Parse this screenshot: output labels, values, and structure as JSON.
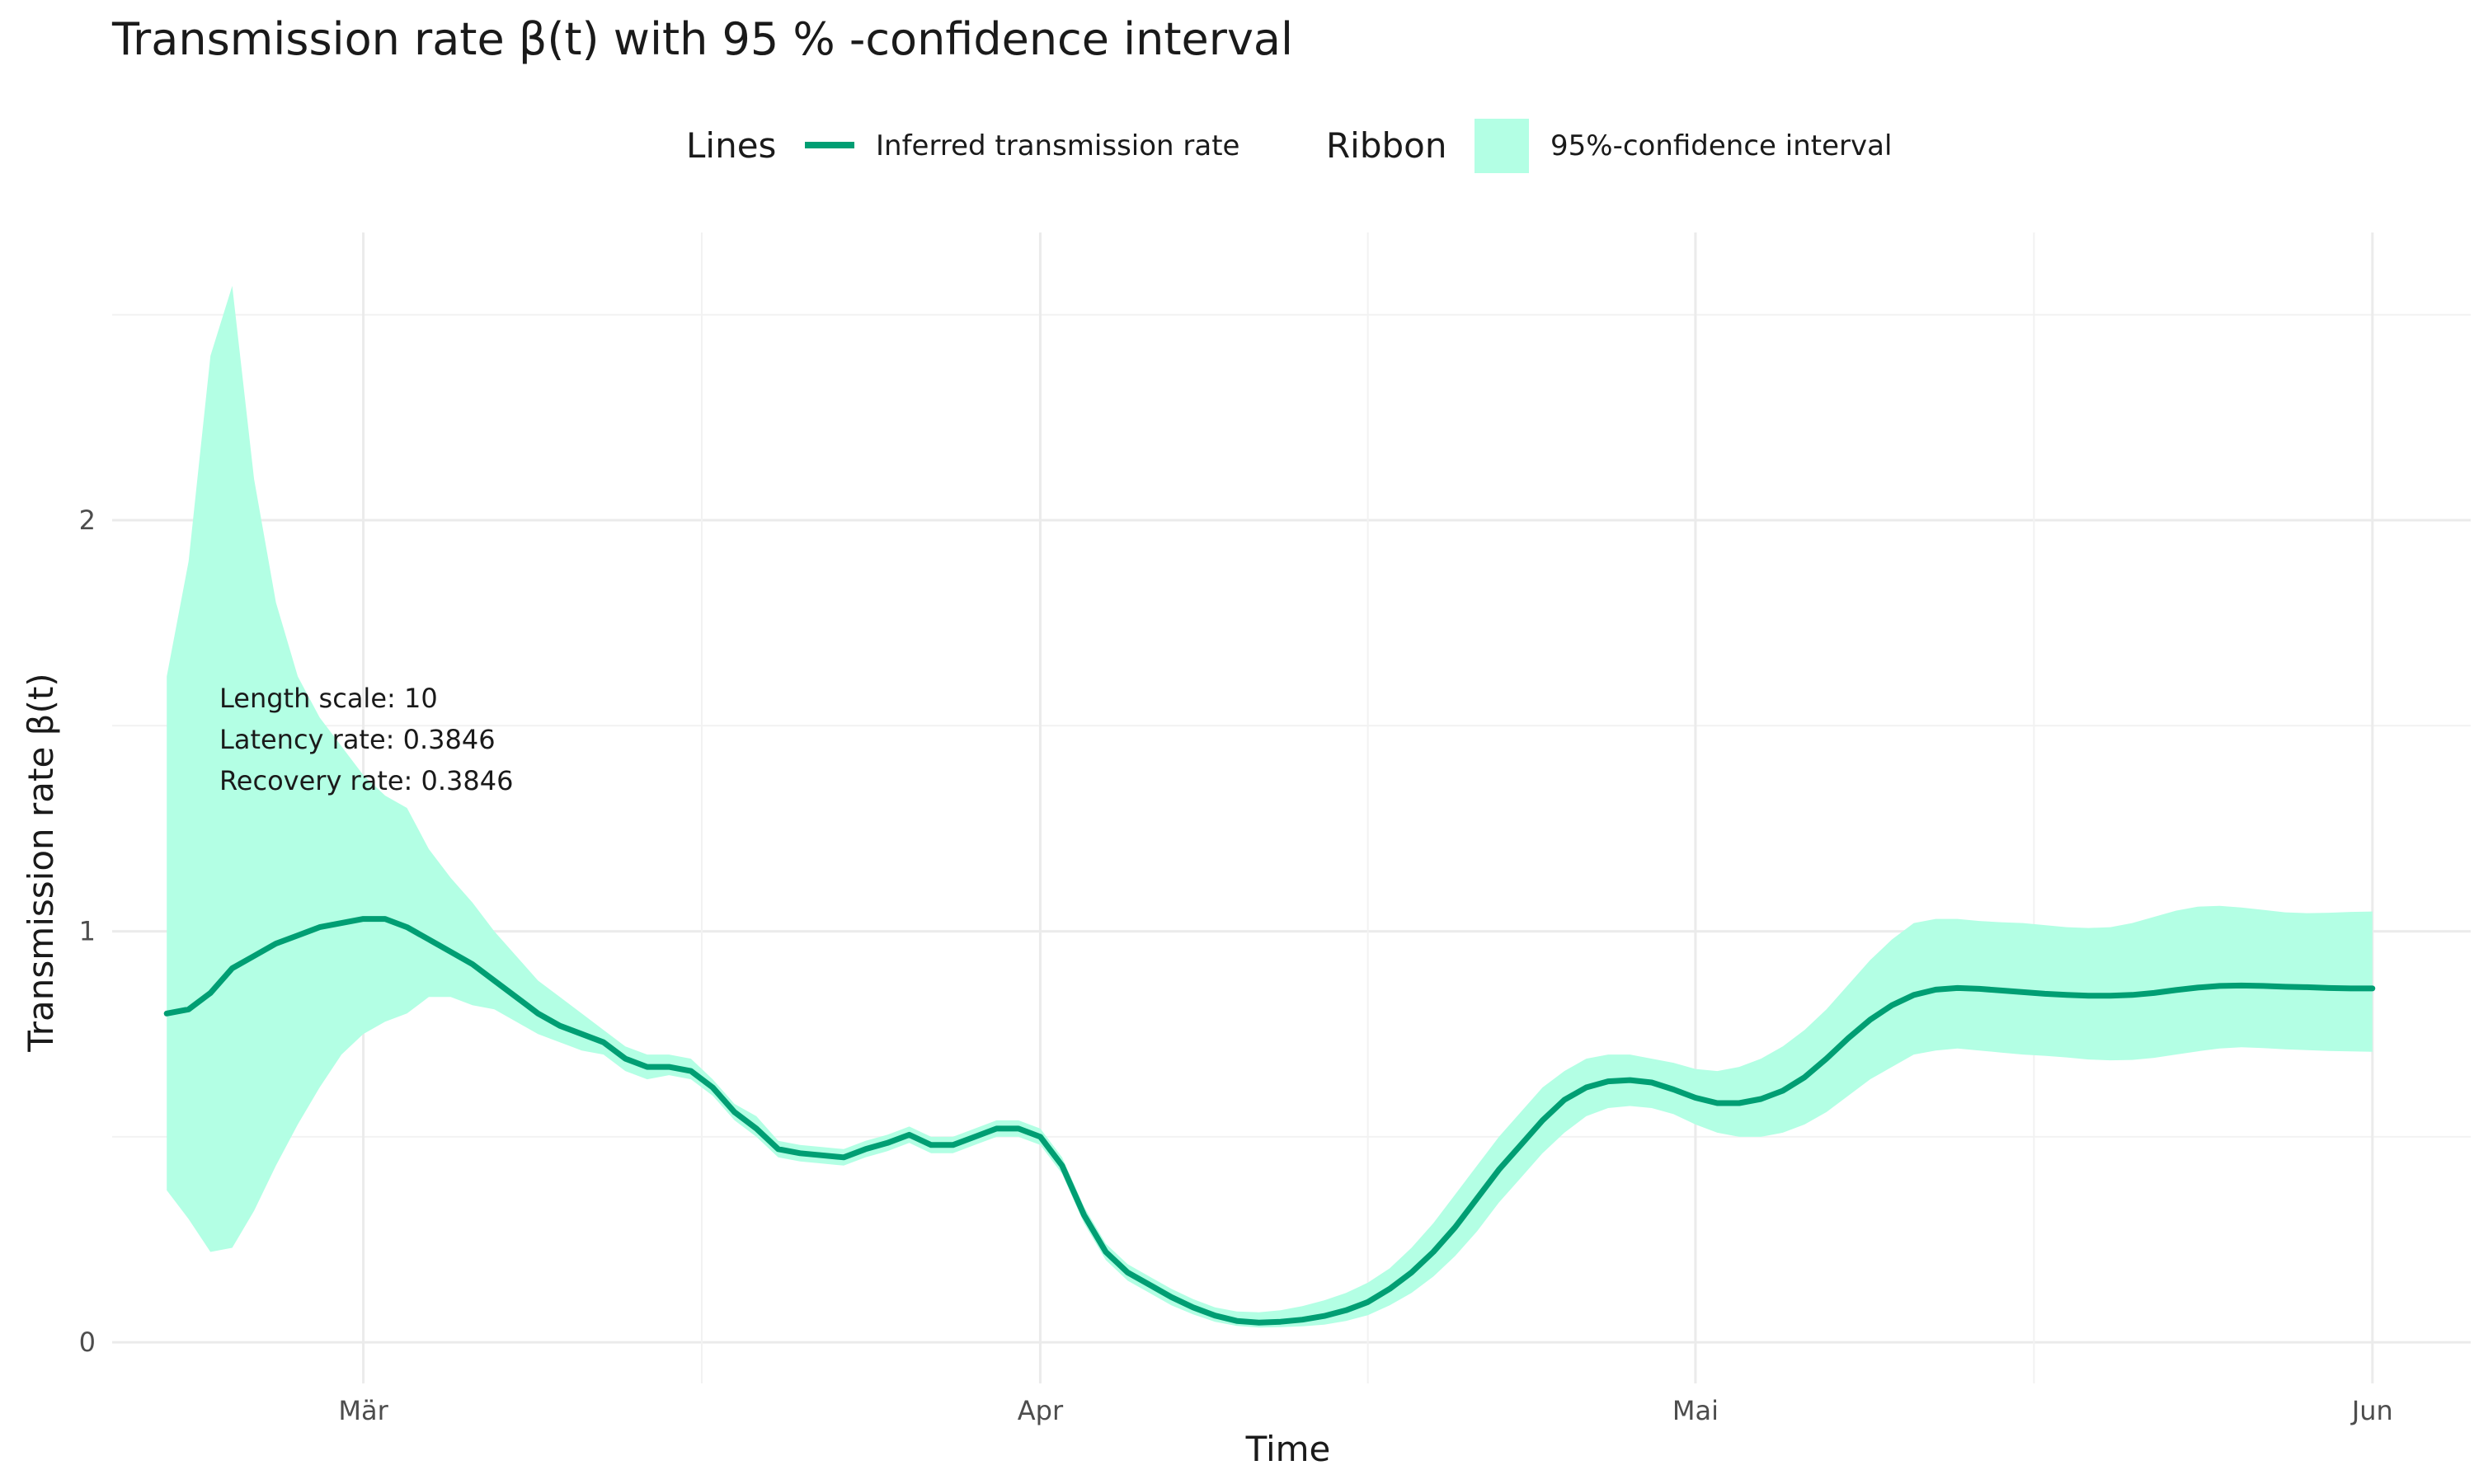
{
  "chart_data": {
    "type": "line",
    "title": "Transmission rate β(t) with 95 % -confidence interval",
    "xlabel": "Time",
    "ylabel": "Transmission rate β(t)",
    "legend": {
      "placement": "top",
      "lines_title": "Lines",
      "lines_label": "Inferred transmission rate",
      "ribbon_title": "Ribbon",
      "ribbon_label": "95%-confidence interval"
    },
    "colors": {
      "line": "#009e73",
      "ribbon": "#b3ffe4"
    },
    "grid": true,
    "x_start": "2020-02-21",
    "x_ticks": [
      {
        "date": "2020-03-01",
        "label": "Mär"
      },
      {
        "date": "2020-04-01",
        "label": "Apr"
      },
      {
        "date": "2020-05-01",
        "label": "Mai"
      },
      {
        "date": "2020-06-01",
        "label": "Jun"
      }
    ],
    "y_ticks": [
      0,
      1,
      2
    ],
    "ylim": [
      -0.1,
      2.7
    ],
    "annotations": [
      "Length scale: 10",
      "Latency rate: 0.3846",
      "Recovery rate: 0.3846"
    ],
    "series": [
      {
        "name": "Inferred transmission rate",
        "points": [
          [
            "2020-02-21",
            0.8
          ],
          [
            "2020-02-22",
            0.81
          ],
          [
            "2020-02-23",
            0.85
          ],
          [
            "2020-02-24",
            0.91
          ],
          [
            "2020-02-25",
            0.94
          ],
          [
            "2020-02-26",
            0.97
          ],
          [
            "2020-02-27",
            0.99
          ],
          [
            "2020-02-28",
            1.01
          ],
          [
            "2020-02-29",
            1.02
          ],
          [
            "2020-03-01",
            1.03
          ],
          [
            "2020-03-02",
            1.03
          ],
          [
            "2020-03-03",
            1.01
          ],
          [
            "2020-03-04",
            0.98
          ],
          [
            "2020-03-05",
            0.95
          ],
          [
            "2020-03-06",
            0.92
          ],
          [
            "2020-03-07",
            0.88
          ],
          [
            "2020-03-08",
            0.84
          ],
          [
            "2020-03-09",
            0.8
          ],
          [
            "2020-03-10",
            0.77
          ],
          [
            "2020-03-11",
            0.75
          ],
          [
            "2020-03-12",
            0.73
          ],
          [
            "2020-03-13",
            0.69
          ],
          [
            "2020-03-14",
            0.67
          ],
          [
            "2020-03-15",
            0.67
          ],
          [
            "2020-03-16",
            0.66
          ],
          [
            "2020-03-17",
            0.62
          ],
          [
            "2020-03-18",
            0.56
          ],
          [
            "2020-03-19",
            0.52
          ],
          [
            "2020-03-20",
            0.47
          ],
          [
            "2020-03-21",
            0.46
          ],
          [
            "2020-03-22",
            0.455
          ],
          [
            "2020-03-23",
            0.45
          ],
          [
            "2020-03-24",
            0.47
          ],
          [
            "2020-03-25",
            0.485
          ],
          [
            "2020-03-26",
            0.505
          ],
          [
            "2020-03-27",
            0.48
          ],
          [
            "2020-03-28",
            0.48
          ],
          [
            "2020-03-29",
            0.5
          ],
          [
            "2020-03-30",
            0.52
          ],
          [
            "2020-03-31",
            0.52
          ],
          [
            "2020-04-01",
            0.5
          ],
          [
            "2020-04-02",
            0.43
          ],
          [
            "2020-04-03",
            0.31
          ],
          [
            "2020-04-04",
            0.22
          ],
          [
            "2020-04-05",
            0.17
          ],
          [
            "2020-04-06",
            0.14
          ],
          [
            "2020-04-07",
            0.11
          ],
          [
            "2020-04-08",
            0.085
          ],
          [
            "2020-04-09",
            0.065
          ],
          [
            "2020-04-10",
            0.052
          ],
          [
            "2020-04-11",
            0.048
          ],
          [
            "2020-04-12",
            0.05
          ],
          [
            "2020-04-13",
            0.055
          ],
          [
            "2020-04-14",
            0.064
          ],
          [
            "2020-04-15",
            0.078
          ],
          [
            "2020-04-16",
            0.098
          ],
          [
            "2020-04-17",
            0.13
          ],
          [
            "2020-04-18",
            0.17
          ],
          [
            "2020-04-19",
            0.22
          ],
          [
            "2020-04-20",
            0.28
          ],
          [
            "2020-04-21",
            0.35
          ],
          [
            "2020-04-22",
            0.42
          ],
          [
            "2020-04-23",
            0.48
          ],
          [
            "2020-04-24",
            0.54
          ],
          [
            "2020-04-25",
            0.59
          ],
          [
            "2020-04-26",
            0.62
          ],
          [
            "2020-04-27",
            0.635
          ],
          [
            "2020-04-28",
            0.638
          ],
          [
            "2020-04-29",
            0.632
          ],
          [
            "2020-04-30",
            0.615
          ],
          [
            "2020-05-01",
            0.595
          ],
          [
            "2020-05-02",
            0.582
          ],
          [
            "2020-05-03",
            0.582
          ],
          [
            "2020-05-04",
            0.592
          ],
          [
            "2020-05-05",
            0.612
          ],
          [
            "2020-05-06",
            0.645
          ],
          [
            "2020-05-07",
            0.69
          ],
          [
            "2020-05-08",
            0.74
          ],
          [
            "2020-05-09",
            0.785
          ],
          [
            "2020-05-10",
            0.82
          ],
          [
            "2020-05-11",
            0.845
          ],
          [
            "2020-05-12",
            0.858
          ],
          [
            "2020-05-13",
            0.862
          ],
          [
            "2020-05-14",
            0.86
          ],
          [
            "2020-05-15",
            0.856
          ],
          [
            "2020-05-16",
            0.852
          ],
          [
            "2020-05-17",
            0.848
          ],
          [
            "2020-05-18",
            0.845
          ],
          [
            "2020-05-19",
            0.843
          ],
          [
            "2020-05-20",
            0.843
          ],
          [
            "2020-05-21",
            0.845
          ],
          [
            "2020-05-22",
            0.85
          ],
          [
            "2020-05-23",
            0.857
          ],
          [
            "2020-05-24",
            0.863
          ],
          [
            "2020-05-25",
            0.867
          ],
          [
            "2020-05-26",
            0.868
          ],
          [
            "2020-05-27",
            0.867
          ],
          [
            "2020-05-28",
            0.865
          ],
          [
            "2020-05-29",
            0.864
          ],
          [
            "2020-05-30",
            0.862
          ],
          [
            "2020-05-31",
            0.861
          ],
          [
            "2020-06-01",
            0.861
          ]
        ]
      },
      {
        "name": "95%-confidence interval",
        "points_lower_upper": [
          [
            "2020-02-21",
            0.37,
            1.62
          ],
          [
            "2020-02-22",
            0.3,
            1.9
          ],
          [
            "2020-02-23",
            0.22,
            2.4
          ],
          [
            "2020-02-24",
            0.23,
            2.57
          ],
          [
            "2020-02-25",
            0.32,
            2.1
          ],
          [
            "2020-02-26",
            0.43,
            1.8
          ],
          [
            "2020-02-27",
            0.53,
            1.62
          ],
          [
            "2020-02-28",
            0.62,
            1.52
          ],
          [
            "2020-02-29",
            0.7,
            1.45
          ],
          [
            "2020-03-01",
            0.75,
            1.38
          ],
          [
            "2020-03-02",
            0.78,
            1.33
          ],
          [
            "2020-03-03",
            0.8,
            1.3
          ],
          [
            "2020-03-04",
            0.84,
            1.2
          ],
          [
            "2020-03-05",
            0.84,
            1.13
          ],
          [
            "2020-03-06",
            0.82,
            1.07
          ],
          [
            "2020-03-07",
            0.81,
            1.0
          ],
          [
            "2020-03-08",
            0.78,
            0.94
          ],
          [
            "2020-03-09",
            0.75,
            0.88
          ],
          [
            "2020-03-10",
            0.73,
            0.84
          ],
          [
            "2020-03-11",
            0.71,
            0.8
          ],
          [
            "2020-03-12",
            0.7,
            0.76
          ],
          [
            "2020-03-13",
            0.66,
            0.72
          ],
          [
            "2020-03-14",
            0.64,
            0.7
          ],
          [
            "2020-03-15",
            0.65,
            0.7
          ],
          [
            "2020-03-16",
            0.64,
            0.69
          ],
          [
            "2020-03-17",
            0.6,
            0.64
          ],
          [
            "2020-03-18",
            0.54,
            0.58
          ],
          [
            "2020-03-19",
            0.5,
            0.55
          ],
          [
            "2020-03-20",
            0.45,
            0.49
          ],
          [
            "2020-03-21",
            0.44,
            0.48
          ],
          [
            "2020-03-22",
            0.435,
            0.475
          ],
          [
            "2020-03-23",
            0.43,
            0.47
          ],
          [
            "2020-03-24",
            0.45,
            0.49
          ],
          [
            "2020-03-25",
            0.465,
            0.505
          ],
          [
            "2020-03-26",
            0.485,
            0.525
          ],
          [
            "2020-03-27",
            0.46,
            0.5
          ],
          [
            "2020-03-28",
            0.46,
            0.5
          ],
          [
            "2020-03-29",
            0.48,
            0.52
          ],
          [
            "2020-03-30",
            0.5,
            0.54
          ],
          [
            "2020-03-31",
            0.5,
            0.54
          ],
          [
            "2020-04-01",
            0.48,
            0.52
          ],
          [
            "2020-04-02",
            0.41,
            0.45
          ],
          [
            "2020-04-03",
            0.29,
            0.33
          ],
          [
            "2020-04-04",
            0.2,
            0.24
          ],
          [
            "2020-04-05",
            0.15,
            0.19
          ],
          [
            "2020-04-06",
            0.12,
            0.16
          ],
          [
            "2020-04-07",
            0.09,
            0.13
          ],
          [
            "2020-04-08",
            0.068,
            0.105
          ],
          [
            "2020-04-09",
            0.05,
            0.085
          ],
          [
            "2020-04-10",
            0.04,
            0.075
          ],
          [
            "2020-04-11",
            0.036,
            0.073
          ],
          [
            "2020-04-12",
            0.037,
            0.078
          ],
          [
            "2020-04-13",
            0.039,
            0.088
          ],
          [
            "2020-04-14",
            0.043,
            0.102
          ],
          [
            "2020-04-15",
            0.052,
            0.12
          ],
          [
            "2020-04-16",
            0.066,
            0.145
          ],
          [
            "2020-04-17",
            0.09,
            0.18
          ],
          [
            "2020-04-18",
            0.12,
            0.23
          ],
          [
            "2020-04-19",
            0.16,
            0.29
          ],
          [
            "2020-04-20",
            0.21,
            0.36
          ],
          [
            "2020-04-21",
            0.27,
            0.43
          ],
          [
            "2020-04-22",
            0.34,
            0.5
          ],
          [
            "2020-04-23",
            0.4,
            0.56
          ],
          [
            "2020-04-24",
            0.46,
            0.62
          ],
          [
            "2020-04-25",
            0.51,
            0.66
          ],
          [
            "2020-04-26",
            0.55,
            0.69
          ],
          [
            "2020-04-27",
            0.57,
            0.7
          ],
          [
            "2020-04-28",
            0.575,
            0.7
          ],
          [
            "2020-04-29",
            0.57,
            0.69
          ],
          [
            "2020-04-30",
            0.555,
            0.68
          ],
          [
            "2020-05-01",
            0.53,
            0.665
          ],
          [
            "2020-05-02",
            0.51,
            0.66
          ],
          [
            "2020-05-03",
            0.5,
            0.67
          ],
          [
            "2020-05-04",
            0.5,
            0.69
          ],
          [
            "2020-05-05",
            0.51,
            0.72
          ],
          [
            "2020-05-06",
            0.53,
            0.76
          ],
          [
            "2020-05-07",
            0.56,
            0.81
          ],
          [
            "2020-05-08",
            0.6,
            0.87
          ],
          [
            "2020-05-09",
            0.64,
            0.93
          ],
          [
            "2020-05-10",
            0.67,
            0.98
          ],
          [
            "2020-05-11",
            0.7,
            1.02
          ],
          [
            "2020-05-12",
            0.71,
            1.03
          ],
          [
            "2020-05-13",
            0.715,
            1.03
          ],
          [
            "2020-05-14",
            0.71,
            1.025
          ],
          [
            "2020-05-15",
            0.705,
            1.022
          ],
          [
            "2020-05-16",
            0.7,
            1.02
          ],
          [
            "2020-05-17",
            0.697,
            1.015
          ],
          [
            "2020-05-18",
            0.693,
            1.01
          ],
          [
            "2020-05-19",
            0.688,
            1.008
          ],
          [
            "2020-05-20",
            0.686,
            1.01
          ],
          [
            "2020-05-21",
            0.687,
            1.02
          ],
          [
            "2020-05-22",
            0.692,
            1.035
          ],
          [
            "2020-05-23",
            0.7,
            1.05
          ],
          [
            "2020-05-24",
            0.708,
            1.06
          ],
          [
            "2020-05-25",
            0.715,
            1.062
          ],
          [
            "2020-05-26",
            0.718,
            1.058
          ],
          [
            "2020-05-27",
            0.716,
            1.052
          ],
          [
            "2020-05-28",
            0.713,
            1.046
          ],
          [
            "2020-05-29",
            0.711,
            1.044
          ],
          [
            "2020-05-30",
            0.709,
            1.045
          ],
          [
            "2020-05-31",
            0.708,
            1.047
          ],
          [
            "2020-06-01",
            0.707,
            1.048
          ]
        ]
      }
    ]
  }
}
